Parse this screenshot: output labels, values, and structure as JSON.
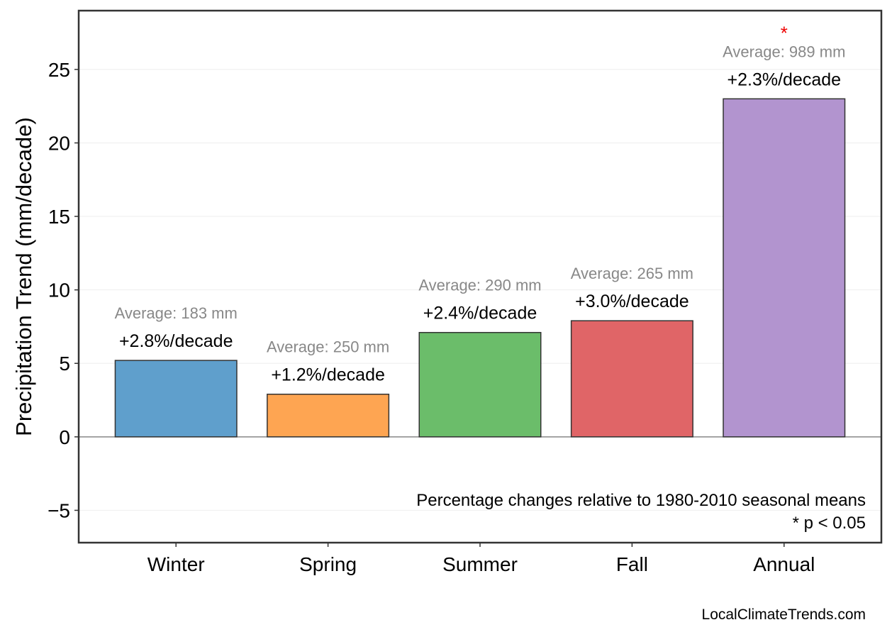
{
  "chart_data": {
    "type": "bar",
    "title": "",
    "xlabel": "",
    "ylabel": "Precipitation Trend (mm/decade)",
    "categories": [
      "Winter",
      "Spring",
      "Summer",
      "Fall",
      "Annual"
    ],
    "values": [
      5.2,
      2.9,
      7.1,
      7.9,
      23.0
    ],
    "colors": [
      "#5f9fcc",
      "#fea552",
      "#6bbd6a",
      "#e06567",
      "#b294cf"
    ],
    "percent_labels": [
      "+2.8%/decade",
      "+1.2%/decade",
      "+2.4%/decade",
      "+3.0%/decade",
      "+2.3%/decade"
    ],
    "average_labels": [
      "Average: 183 mm",
      "Average: 250 mm",
      "Average: 290 mm",
      "Average: 265 mm",
      "Average: 989 mm"
    ],
    "significant": [
      false,
      false,
      false,
      false,
      true
    ],
    "significance_marker": "*",
    "ylim": [
      -7.2,
      29
    ],
    "yticks": [
      -5,
      0,
      5,
      10,
      15,
      20,
      25
    ],
    "ytick_labels": [
      "−5",
      "0",
      "5",
      "10",
      "15",
      "20",
      "25"
    ],
    "grid": true,
    "annotation_line1": "Percentage changes relative to 1980-2010 seasonal means",
    "annotation_line2": "* p < 0.05"
  },
  "footer": {
    "source": "LocalClimateTrends.com"
  }
}
